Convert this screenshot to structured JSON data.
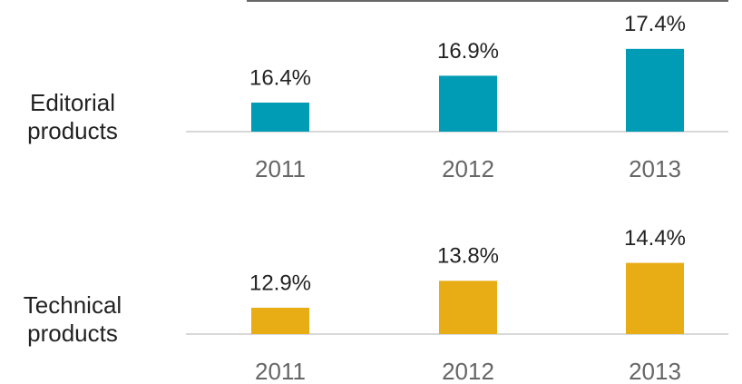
{
  "chart_data": [
    {
      "type": "bar",
      "title": "Editorial products",
      "categories": [
        "2011",
        "2012",
        "2013"
      ],
      "values": [
        16.4,
        16.9,
        17.4
      ],
      "value_labels": [
        "16.4%",
        "16.9%",
        "17.4%"
      ],
      "color": "#009bb5",
      "ylim": [
        15.86,
        17.6
      ]
    },
    {
      "type": "bar",
      "title": "Technical products",
      "categories": [
        "2011",
        "2012",
        "2013"
      ],
      "values": [
        12.9,
        13.8,
        14.4
      ],
      "value_labels": [
        "12.9%",
        "13.8%",
        "14.4%"
      ],
      "color": "#e8ac14",
      "ylim": [
        12.02,
        14.6
      ]
    }
  ]
}
